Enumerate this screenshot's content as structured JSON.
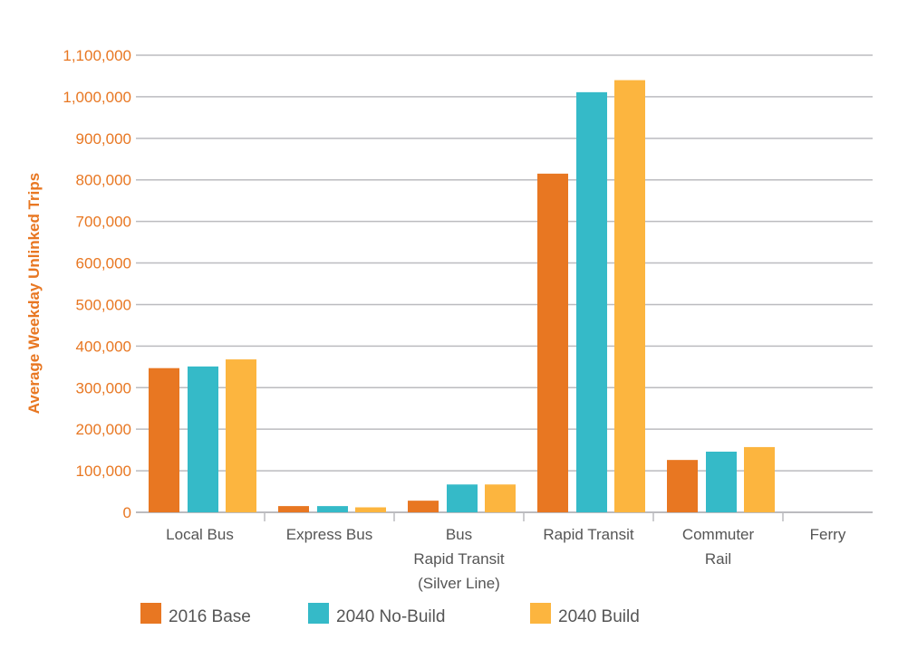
{
  "chart_data": {
    "type": "bar",
    "title": "",
    "xlabel": "",
    "ylabel": "Average Weekday Unlinked Trips",
    "ylim": [
      0,
      1100000
    ],
    "yticks": [
      "0",
      "100,000",
      "200,000",
      "300,000",
      "400,000",
      "500,000",
      "600,000",
      "700,000",
      "800,000",
      "900,000",
      "1,000,000",
      "1,100,000"
    ],
    "grid": true,
    "legend_position": "bottom",
    "categories": [
      [
        "Local Bus"
      ],
      [
        "Express Bus"
      ],
      [
        "Bus",
        "Rapid Transit",
        "(Silver Line)"
      ],
      [
        "Rapid Transit"
      ],
      [
        "Commuter",
        "Rail"
      ],
      [
        "Ferry"
      ]
    ],
    "series": [
      {
        "name": "2016 Base",
        "color": "#E87722",
        "values": [
          347000,
          15000,
          28000,
          815000,
          126000,
          0
        ]
      },
      {
        "name": "2040 No-Build",
        "color": "#35BAC8",
        "values": [
          351000,
          15000,
          67000,
          1011000,
          146000,
          0
        ]
      },
      {
        "name": "2040 Build",
        "color": "#FCB53F",
        "values": [
          368000,
          12000,
          67000,
          1040000,
          157000,
          0
        ]
      }
    ],
    "grid_color": "#BBBBBF"
  }
}
